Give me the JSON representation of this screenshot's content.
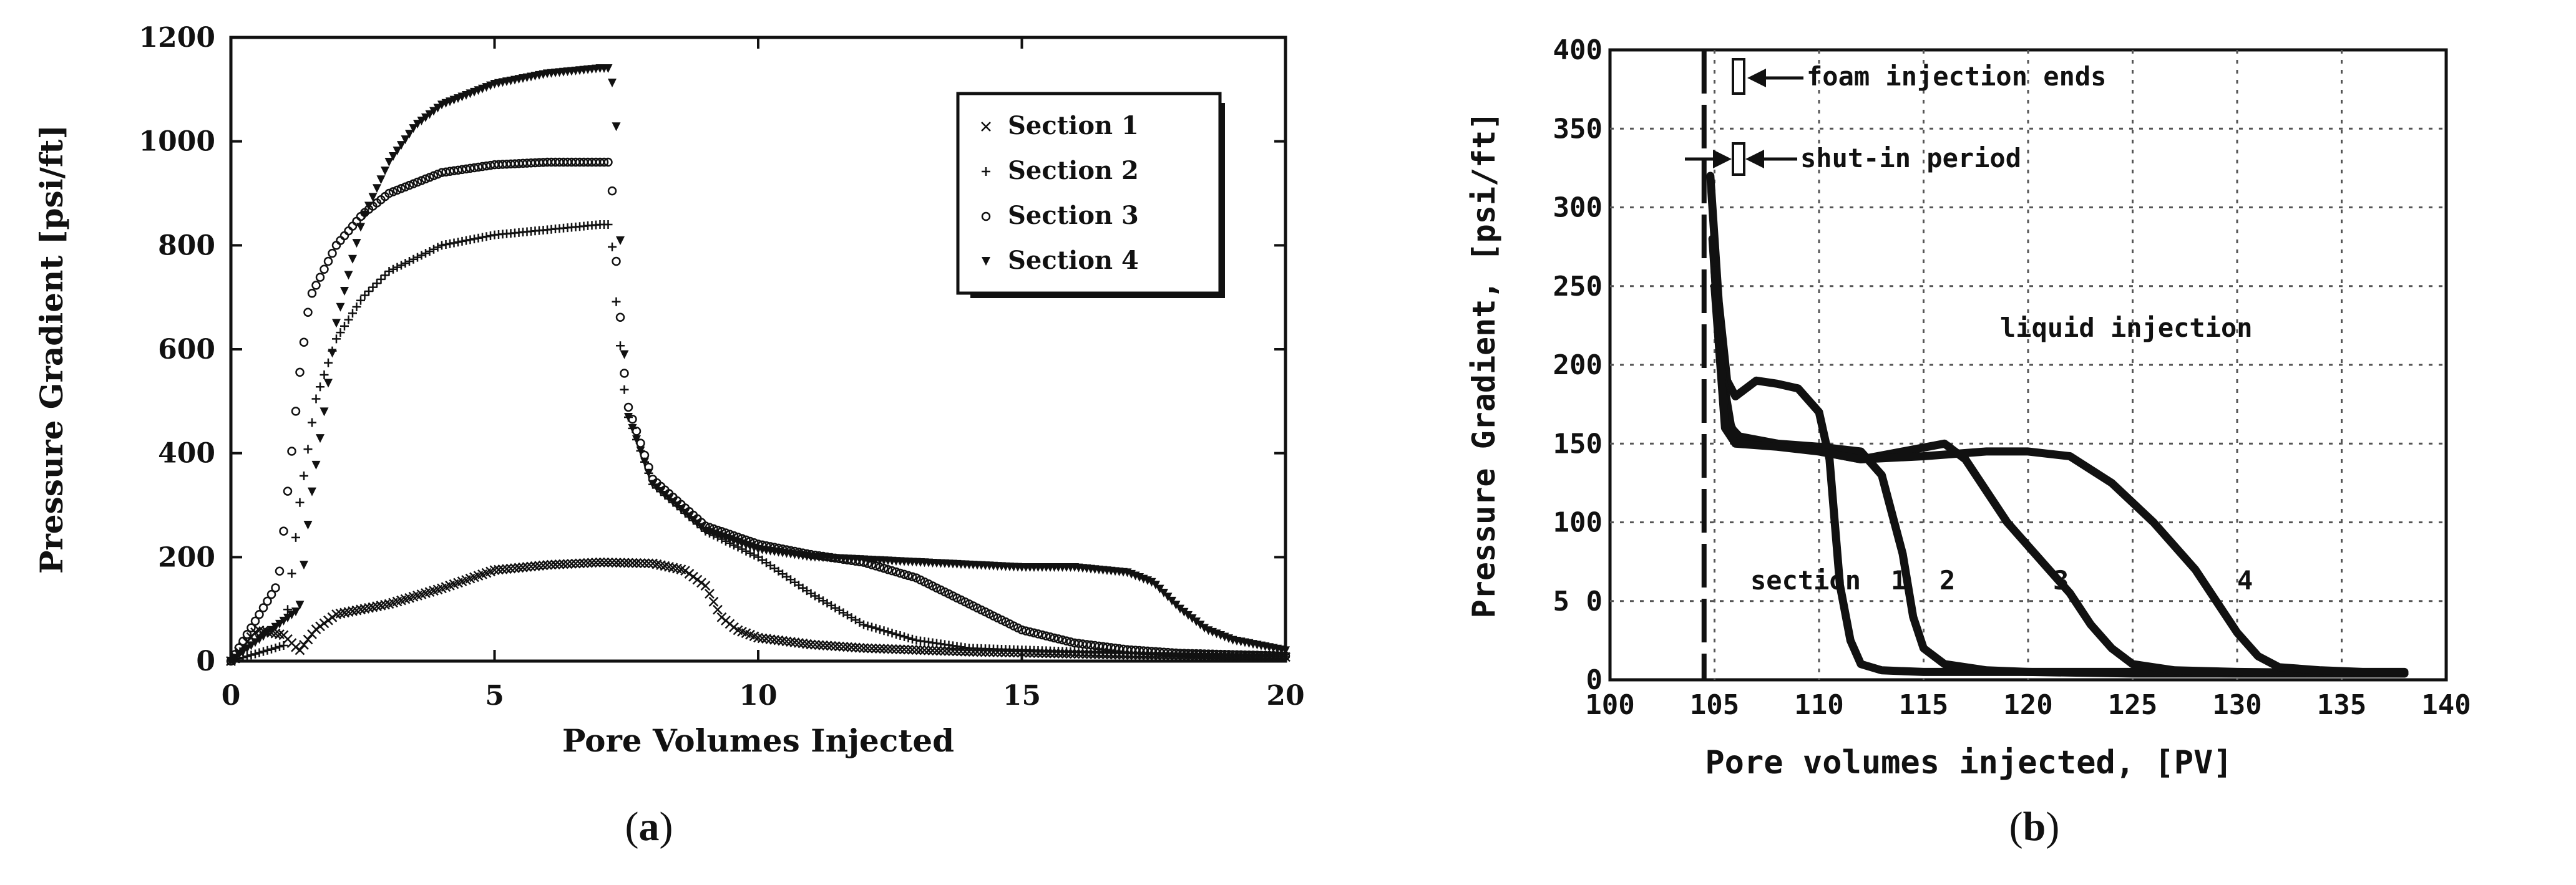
{
  "captions": {
    "a_open": "(",
    "a_letter": "a",
    "a_close": ")",
    "b_open": "(",
    "b_letter": "b",
    "b_close": ")"
  },
  "chart_data": [
    {
      "type": "scatter",
      "panel": "a",
      "xlabel": "Pore Volumes Injected",
      "ylabel": "Pressure Gradient [psi/ft]",
      "xlim": [
        0,
        20
      ],
      "ylim": [
        0,
        1200
      ],
      "xticks": [
        0,
        5,
        10,
        15,
        20
      ],
      "yticks": [
        0,
        200,
        400,
        600,
        800,
        1000,
        1200
      ],
      "grid": false,
      "legend_position": "top-right",
      "series": [
        {
          "name": "Section 1",
          "marker": "x",
          "x": [
            0,
            0.5,
            1.0,
            1.3,
            1.6,
            2.0,
            3.0,
            4.0,
            5.0,
            6.0,
            7.0,
            8.0,
            8.6,
            9.0,
            9.3,
            9.6,
            10.0,
            11.0,
            12.0,
            14.0,
            16.0,
            18.0,
            20.0
          ],
          "y": [
            0,
            60,
            50,
            20,
            60,
            90,
            110,
            140,
            175,
            185,
            190,
            188,
            175,
            145,
            85,
            60,
            45,
            32,
            25,
            18,
            14,
            10,
            8
          ]
        },
        {
          "name": "Section 2",
          "marker": "+",
          "x": [
            0,
            1.0,
            1.3,
            1.6,
            2.0,
            2.5,
            3.0,
            4.0,
            5.0,
            6.0,
            7.0,
            7.2,
            7.3,
            7.5,
            8.0,
            9.0,
            9.5,
            10.0,
            11.0,
            12.0,
            13.0,
            14.0,
            16.0,
            18.0,
            20.0
          ],
          "y": [
            0,
            30,
            300,
            500,
            620,
            700,
            750,
            800,
            820,
            830,
            840,
            840,
            700,
            480,
            340,
            250,
            225,
            200,
            130,
            70,
            40,
            25,
            18,
            12,
            8
          ]
        },
        {
          "name": "Section 3",
          "marker": "o",
          "x": [
            0,
            0.9,
            1.1,
            1.3,
            1.5,
            2.0,
            2.5,
            3.0,
            4.0,
            5.0,
            6.0,
            7.0,
            7.2,
            7.3,
            7.5,
            8.0,
            9.0,
            10.0,
            11.0,
            12.0,
            13.0,
            14.0,
            15.0,
            16.0,
            17.0,
            18.0,
            20.0
          ],
          "y": [
            0,
            150,
            350,
            550,
            700,
            800,
            860,
            900,
            940,
            955,
            960,
            960,
            960,
            780,
            500,
            350,
            260,
            225,
            205,
            190,
            160,
            110,
            60,
            35,
            22,
            15,
            10
          ]
        },
        {
          "name": "Section 4",
          "marker": "v",
          "x": [
            0,
            1.3,
            1.5,
            1.8,
            2.0,
            2.5,
            3.0,
            3.5,
            4.0,
            5.0,
            6.0,
            7.0,
            7.2,
            7.3,
            7.5,
            8.0,
            9.0,
            10.0,
            11.0,
            12.0,
            13.0,
            14.0,
            15.0,
            16.0,
            17.0,
            17.5,
            18.0,
            18.5,
            19.0,
            20.0
          ],
          "y": [
            0,
            100,
            300,
            500,
            650,
            850,
            960,
            1030,
            1070,
            1110,
            1130,
            1140,
            1140,
            1050,
            480,
            340,
            250,
            215,
            200,
            195,
            190,
            185,
            180,
            180,
            170,
            150,
            100,
            60,
            40,
            20
          ]
        }
      ]
    },
    {
      "type": "scatter",
      "panel": "b",
      "xlabel": "Pore volumes injected, [PV]",
      "ylabel": "Pressure Gradient, [psi/ft]",
      "xlim": [
        100,
        140
      ],
      "ylim": [
        0,
        400
      ],
      "xticks": [
        100,
        105,
        110,
        115,
        120,
        125,
        130,
        135,
        140
      ],
      "yticks": [
        0,
        50,
        100,
        150,
        200,
        250,
        300,
        350,
        400
      ],
      "ytick_labels": [
        "0",
        "5 0",
        "100",
        "150",
        "200",
        "250",
        "300",
        "350",
        "400"
      ],
      "grid": true,
      "annotations": [
        "foam injection ends",
        "shut-in period",
        "liquid injection",
        "section",
        "1",
        "2",
        "3",
        "4"
      ],
      "series": [
        {
          "name": "1",
          "x": [
            104.8,
            105.2,
            105.6,
            106.0,
            107.0,
            108.0,
            109.0,
            110.0,
            110.5,
            111.0,
            111.5,
            112.0,
            113.0,
            115.0,
            120.0,
            125.0,
            130.0,
            135.0,
            138.0
          ],
          "y": [
            320,
            240,
            190,
            180,
            190,
            188,
            185,
            170,
            140,
            60,
            25,
            10,
            6,
            5,
            5,
            4,
            4,
            4,
            4
          ]
        },
        {
          "name": "2",
          "x": [
            104.9,
            105.3,
            105.8,
            106.5,
            108.0,
            110.0,
            112.0,
            113.0,
            114.0,
            114.5,
            115.0,
            116.0,
            118.0,
            120.0,
            125.0,
            130.0,
            138.0
          ],
          "y": [
            280,
            200,
            160,
            150,
            150,
            148,
            145,
            130,
            80,
            40,
            20,
            10,
            6,
            5,
            5,
            4,
            4
          ]
        },
        {
          "name": "3",
          "x": [
            105.0,
            105.5,
            106.0,
            108.0,
            110.0,
            112.0,
            114.0,
            116.0,
            117.0,
            118.0,
            119.0,
            120.0,
            121.0,
            122.0,
            123.0,
            124.0,
            125.0,
            127.0,
            130.0,
            138.0
          ],
          "y": [
            260,
            170,
            155,
            150,
            145,
            140,
            145,
            150,
            140,
            120,
            100,
            85,
            70,
            55,
            35,
            20,
            10,
            6,
            5,
            4
          ]
        },
        {
          "name": "4",
          "x": [
            105.0,
            105.5,
            106.0,
            108.0,
            110.0,
            112.0,
            115.0,
            118.0,
            120.0,
            122.0,
            124.0,
            126.0,
            128.0,
            129.0,
            130.0,
            131.0,
            132.0,
            134.0,
            136.0,
            138.0
          ],
          "y": [
            250,
            160,
            150,
            148,
            145,
            140,
            142,
            145,
            145,
            142,
            125,
            100,
            70,
            50,
            30,
            15,
            8,
            6,
            5,
            5
          ]
        }
      ]
    }
  ]
}
